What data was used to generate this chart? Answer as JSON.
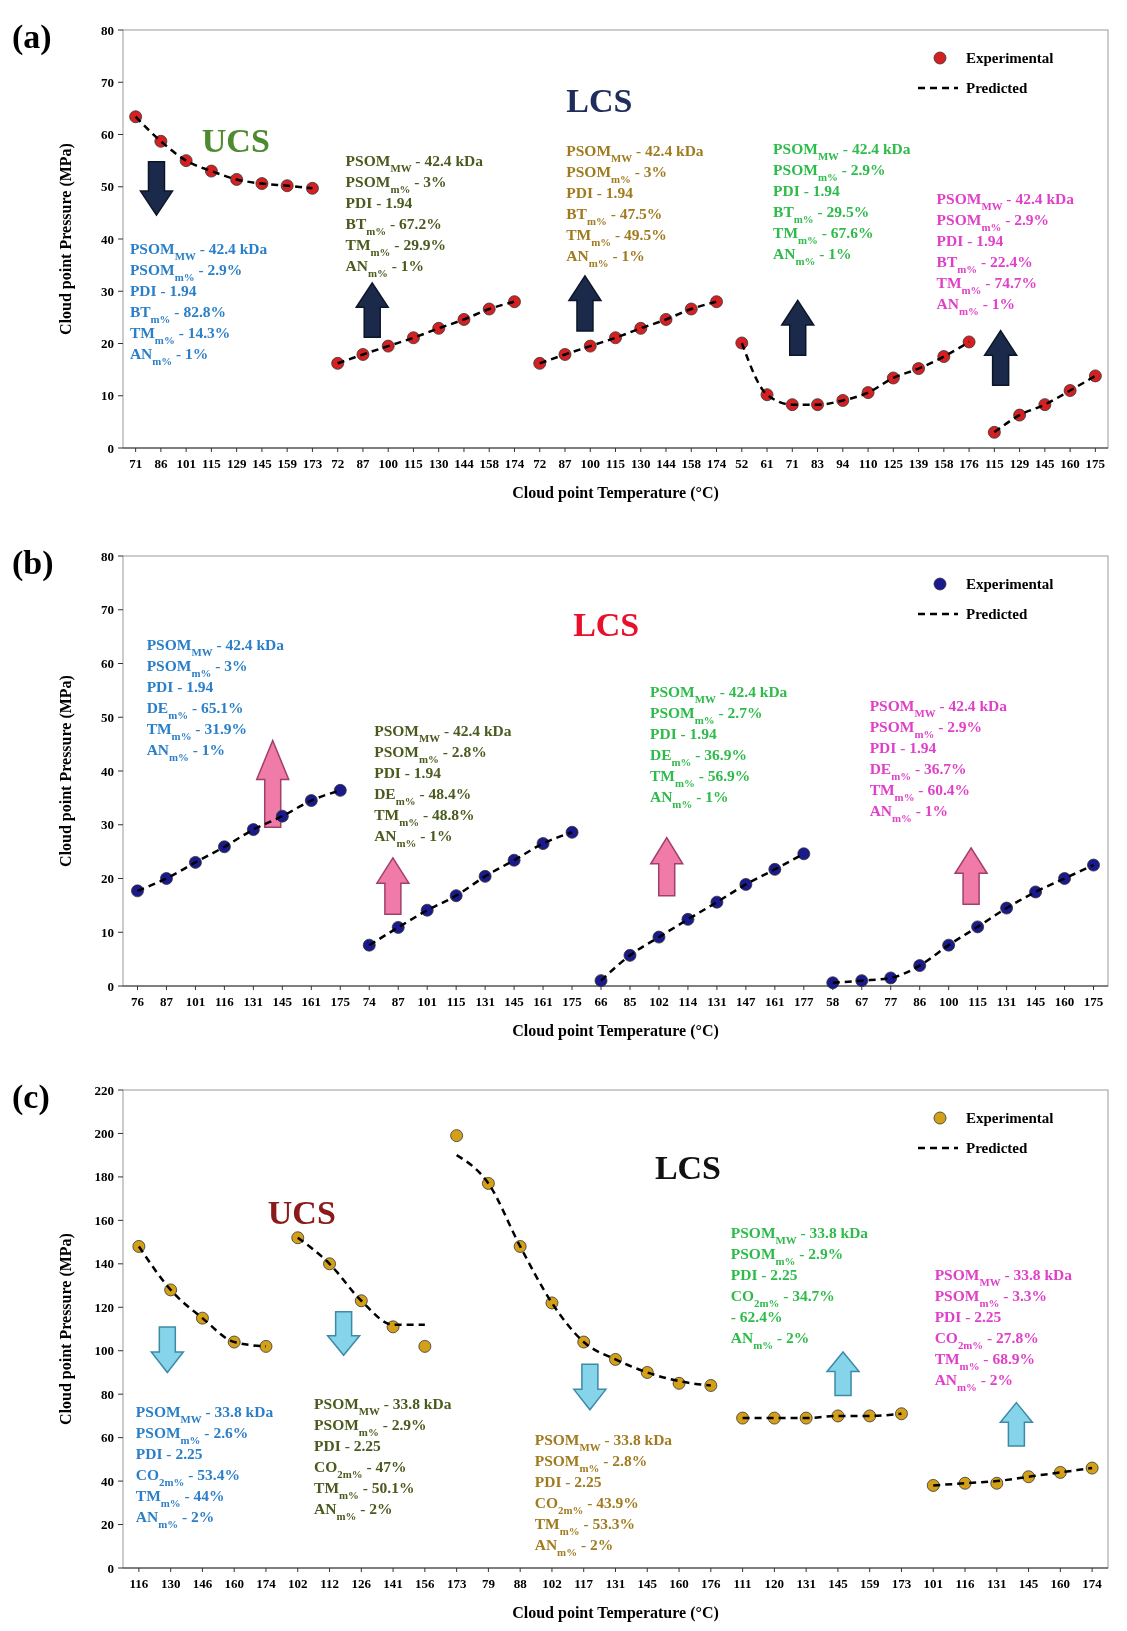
{
  "chart_data": [
    {
      "type": "scatter",
      "title": "(a)",
      "xlabel": "Cloud point Temperature (°C)",
      "ylabel": "Cloud point Pressure (MPa)",
      "ylim": [
        0,
        80
      ],
      "yticks": [
        0,
        10,
        20,
        30,
        40,
        50,
        60,
        70,
        80
      ],
      "legend": "top right",
      "line_style": "dashed",
      "categories": [
        "71",
        "86",
        "101",
        "115",
        "129",
        "145",
        "159",
        "173",
        "72",
        "87",
        "100",
        "115",
        "130",
        "144",
        "158",
        "174",
        "72",
        "87",
        "100",
        "115",
        "130",
        "144",
        "158",
        "174",
        "52",
        "61",
        "71",
        "83",
        "94",
        "110",
        "125",
        "139",
        "158",
        "176",
        "115",
        "129",
        "145",
        "160",
        "175"
      ],
      "annotations": [
        "UCS",
        "LCS",
        "PSOM$_{MW}$ - 42.4 kDa\nPSOM$_{m%}$ - 2.9%\nPDI - 1.94\nBT$_{m%}$ - 82.8%\nTM$_{m%}$ - 14.3%\nAN$_{m%}$ - 1%",
        "PSOM$_{MW}$ - 42.4 kDa\nPSOM$_{m%}$ - 3%\nPDI - 1.94\nBT$_{m%}$ - 67.2%\nTM$_{m%}$ - 29.9%\nAN$_{m%}$ - 1%",
        "PSOM$_{MW}$ - 42.4 kDa\nPSOM$_{m%}$ - 3%\nPDI - 1.94\nBT$_{m%}$ - 47.5%\nTM$_{m%}$ - 49.5%\nAN$_{m%}$ - 1%",
        "PSOM$_{MW}$ - 42.4 kDa\nPSOM$_{m%}$ - 2.9%\nPDI - 1.94\nBT$_{m%}$ - 29.5%\nTM$_{m%}$ - 67.6%\nAN$_{m%}$ - 1%",
        "PSOM$_{MW}$ - 42.4 kDa\nPSOM$_{m%}$ - 2.9%\nPDI - 1.94\nBT$_{m%}$ - 22.4%\nTM$_{m%}$ - 74.7%\nAN$_{m%}$ - 1%"
      ],
      "series": [
        {
          "name": "Experimental",
          "marker": "circle",
          "color": "#d42020",
          "values": [
            63.4,
            58.7,
            55.0,
            53.0,
            51.4,
            50.6,
            50.2,
            49.7,
            16.2,
            17.9,
            19.5,
            21.1,
            22.9,
            24.6,
            26.6,
            28.0,
            16.2,
            17.9,
            19.5,
            21.1,
            22.9,
            24.6,
            26.6,
            28.0,
            20.1,
            10.2,
            8.3,
            8.3,
            9.1,
            10.6,
            13.4,
            15.2,
            17.5,
            20.3,
            3.0,
            6.3,
            8.3,
            11.0,
            13.8
          ]
        },
        {
          "name": "Predicted",
          "type": "line",
          "color": "#000000",
          "values": [
            63.4,
            58.7,
            55.0,
            53.0,
            51.4,
            50.6,
            50.2,
            49.7,
            null,
            null,
            null,
            null,
            null,
            null,
            null,
            null,
            null,
            null,
            null,
            null,
            null,
            null,
            null,
            null,
            null,
            null,
            null,
            null,
            null,
            null,
            null,
            null,
            null,
            null,
            null,
            null,
            null,
            null,
            null
          ]
        },
        {
          "type": "line",
          "color": "#000000",
          "values": [
            null,
            null,
            null,
            null,
            null,
            null,
            null,
            null,
            16.2,
            17.9,
            19.5,
            21.1,
            22.9,
            24.6,
            26.6,
            28.0,
            null,
            null,
            null,
            null,
            null,
            null,
            null,
            null,
            null,
            null,
            null,
            null,
            null,
            null,
            null,
            null,
            null,
            null,
            null,
            null,
            null,
            null,
            null
          ]
        },
        {
          "type": "line",
          "color": "#000000",
          "values": [
            null,
            null,
            null,
            null,
            null,
            null,
            null,
            null,
            null,
            null,
            null,
            null,
            null,
            null,
            null,
            null,
            16.2,
            17.9,
            19.5,
            21.1,
            22.9,
            24.6,
            26.6,
            28.0,
            null,
            null,
            null,
            null,
            null,
            null,
            null,
            null,
            null,
            null,
            null,
            null,
            null,
            null,
            null
          ]
        },
        {
          "type": "line",
          "color": "#000000",
          "values": [
            null,
            null,
            null,
            null,
            null,
            null,
            null,
            null,
            null,
            null,
            null,
            null,
            null,
            null,
            null,
            null,
            null,
            null,
            null,
            null,
            null,
            null,
            null,
            null,
            20.1,
            10.2,
            8.3,
            8.3,
            9.1,
            10.6,
            13.4,
            15.2,
            17.5,
            20.3,
            null,
            null,
            null,
            null,
            null
          ]
        },
        {
          "type": "line",
          "color": "#000000",
          "values": [
            null,
            null,
            null,
            null,
            null,
            null,
            null,
            null,
            null,
            null,
            null,
            null,
            null,
            null,
            null,
            null,
            null,
            null,
            null,
            null,
            null,
            null,
            null,
            null,
            null,
            null,
            null,
            null,
            null,
            null,
            null,
            null,
            null,
            null,
            3.0,
            6.3,
            8.3,
            11.0,
            13.8
          ]
        }
      ]
    },
    {
      "type": "scatter",
      "title": "(b)",
      "xlabel": "Cloud point Temperature (°C)",
      "ylabel": "Cloud point Pressure (MPa)",
      "ylim": [
        0,
        80
      ],
      "yticks": [
        0,
        10,
        20,
        30,
        40,
        50,
        60,
        70,
        80
      ],
      "legend": "top right",
      "line_style": "dashed",
      "categories": [
        "76",
        "87",
        "101",
        "116",
        "131",
        "145",
        "161",
        "175",
        "74",
        "87",
        "101",
        "115",
        "131",
        "145",
        "161",
        "175",
        "66",
        "85",
        "102",
        "114",
        "131",
        "147",
        "161",
        "177",
        "58",
        "67",
        "77",
        "86",
        "100",
        "115",
        "131",
        "145",
        "160",
        "175"
      ],
      "annotations": [
        "LCS",
        "PSOM$_{MW}$ - 42.4 kDa\nPSOM$_{m%}$ - 3%\nPDI - 1.94\nDE$_{m%}$ - 65.1%\nTM$_{m%}$ - 31.9%\nAN$_{m%}$ - 1%",
        "PSOM$_{MW}$ - 42.4 kDa\nPSOM$_{m%}$ - 2.8%\nPDI - 1.94\nDE$_{m%}$ - 48.4%\nTM$_{m%}$ - 48.8%\nAN$_{m%}$ - 1%",
        "PSOM$_{MW}$ - 42.4 kDa\nPSOM$_{m%}$ - 2.7%\nPDI - 1.94\nDE$_{m%}$ - 36.9%\nTM$_{m%}$ - 56.9%\nAN$_{m%}$ - 1%",
        "PSOM$_{MW}$ - 42.4 kDa\nPSOM$_{m%}$ - 2.9%\nPDI - 1.94\nDE$_{m%}$ - 36.7%\nTM$_{m%}$ - 60.4%\nAN$_{m%}$ - 1%"
      ],
      "series": [
        {
          "name": "Experimental",
          "marker": "circle",
          "color": "#1a1a8c",
          "values": [
            17.7,
            20.0,
            23.0,
            25.9,
            29.1,
            31.6,
            34.5,
            36.4,
            7.6,
            10.9,
            14.1,
            16.8,
            20.4,
            23.4,
            26.5,
            28.6,
            1.0,
            5.7,
            9.1,
            12.4,
            15.6,
            18.9,
            21.7,
            24.6,
            0.6,
            1.0,
            1.5,
            3.8,
            7.6,
            11.0,
            14.5,
            17.5,
            20.0,
            22.5
          ]
        },
        {
          "name": "Predicted",
          "type": "line",
          "color": "#000000",
          "values": [
            17.7,
            20.0,
            23.0,
            25.9,
            29.1,
            31.6,
            34.5,
            36.4,
            null,
            null,
            null,
            null,
            null,
            null,
            null,
            null,
            null,
            null,
            null,
            null,
            null,
            null,
            null,
            null,
            null,
            null,
            null,
            null,
            null,
            null,
            null,
            null,
            null,
            null
          ]
        },
        {
          "type": "line",
          "color": "#000000",
          "values": [
            null,
            null,
            null,
            null,
            null,
            null,
            null,
            null,
            7.6,
            10.9,
            14.1,
            16.8,
            20.4,
            23.4,
            26.5,
            28.6,
            null,
            null,
            null,
            null,
            null,
            null,
            null,
            null,
            null,
            null,
            null,
            null,
            null,
            null,
            null,
            null,
            null,
            null
          ]
        },
        {
          "type": "line",
          "color": "#000000",
          "values": [
            null,
            null,
            null,
            null,
            null,
            null,
            null,
            null,
            null,
            null,
            null,
            null,
            null,
            null,
            null,
            null,
            1.0,
            5.7,
            9.1,
            12.4,
            15.6,
            18.9,
            21.7,
            24.6,
            null,
            null,
            null,
            null,
            null,
            null,
            null,
            null,
            null,
            null
          ]
        },
        {
          "type": "line",
          "color": "#000000",
          "values": [
            null,
            null,
            null,
            null,
            null,
            null,
            null,
            null,
            null,
            null,
            null,
            null,
            null,
            null,
            null,
            null,
            null,
            null,
            null,
            null,
            null,
            null,
            null,
            null,
            0.6,
            1.0,
            1.5,
            3.8,
            7.6,
            11.0,
            14.5,
            17.5,
            20.0,
            22.5
          ]
        }
      ]
    },
    {
      "type": "scatter",
      "title": "(c)",
      "xlabel": "Cloud point Temperature (°C)",
      "ylabel": "Cloud point Pressure (MPa)",
      "ylim": [
        0,
        220
      ],
      "yticks": [
        0,
        20,
        40,
        60,
        80,
        100,
        120,
        140,
        160,
        180,
        200,
        220
      ],
      "legend": "top right",
      "line_style": "dashed",
      "categories": [
        "116",
        "130",
        "146",
        "160",
        "174",
        "102",
        "112",
        "126",
        "141",
        "156",
        "173",
        "79",
        "88",
        "102",
        "117",
        "131",
        "145",
        "160",
        "176",
        "111",
        "120",
        "131",
        "145",
        "159",
        "173",
        "101",
        "116",
        "131",
        "145",
        "160",
        "174"
      ],
      "annotations": [
        "LCS",
        "UCS",
        "PSOM$_{MW}$ - 33.8 kDa\nPSOM$_{m%}$ - 2.6%\nPDI - 2.25\nCO$_{2m%}$ - 53.4%\nTM$_{m%}$ - 44%\nAN$_{m%}$ - 2%",
        "PSOM$_{MW}$ - 33.8 kDa\nPSOM$_{m%}$ - 2.9%\nPDI - 2.25\nCO$_{2m%}$ - 47%\nTM$_{m%}$ - 50.1%\nAN$_{m%}$ - 2%",
        "PSOM$_{MW}$ - 33.8 kDa\nPSOM$_{m%}$ - 2.8%\nPDI - 2.25\nCO$_{2m%}$ - 43.9%\nTM$_{m%}$ - 53.3%\nAN$_{m%}$ - 2%",
        "PSOM$_{MW}$ - 33.8 kDa\nPSOM$_{m%}$ - 2.9%\nPDI - 2.25\nCO$_{2m%}$ - 34.7%\n- 62.4%\nAN$_{m%}$ - 2%",
        "PSOM$_{MW}$ - 33.8 kDa\nPSOM$_{m%}$ - 3.3%\nPDI - 2.25\nCO$_{2m%}$ - 27.8%\nTM$_{m%}$ - 68.9%\nAN$_{m%}$ - 2%"
      ],
      "series": [
        {
          "name": "Experimental",
          "marker": "circle",
          "color": "#d4a017",
          "values": [
            148,
            128,
            115,
            104,
            102,
            152,
            140,
            123,
            111,
            102,
            199,
            177,
            148,
            122,
            104,
            96,
            90,
            85,
            84,
            69,
            69,
            69,
            70,
            70,
            71,
            38,
            39,
            39,
            42,
            44,
            46
          ]
        },
        {
          "name": "Predicted",
          "type": "line",
          "color": "#000000",
          "values": [
            148,
            128,
            115,
            104,
            102,
            null,
            null,
            null,
            null,
            null,
            null,
            null,
            null,
            null,
            null,
            null,
            null,
            null,
            null,
            null,
            null,
            null,
            null,
            null,
            null,
            null,
            null,
            null,
            null,
            null,
            null
          ]
        },
        {
          "type": "line",
          "color": "#000000",
          "values": [
            null,
            null,
            null,
            null,
            null,
            152,
            140,
            123,
            112,
            112,
            null,
            null,
            null,
            null,
            null,
            null,
            null,
            null,
            null,
            null,
            null,
            null,
            null,
            null,
            null,
            null,
            null,
            null,
            null,
            null,
            null
          ]
        },
        {
          "type": "line",
          "color": "#000000",
          "values": [
            null,
            null,
            null,
            null,
            null,
            null,
            null,
            null,
            null,
            null,
            190,
            177,
            148,
            122,
            104,
            96,
            90,
            86,
            84,
            null,
            null,
            null,
            null,
            null,
            null,
            null,
            null,
            null,
            null,
            null,
            null
          ]
        },
        {
          "type": "line",
          "color": "#000000",
          "values": [
            null,
            null,
            null,
            null,
            null,
            null,
            null,
            null,
            null,
            null,
            null,
            null,
            null,
            null,
            null,
            null,
            null,
            null,
            null,
            69,
            69,
            69,
            70,
            70,
            71,
            null,
            null,
            null,
            null,
            null,
            null
          ]
        },
        {
          "type": "line",
          "color": "#000000",
          "values": [
            null,
            null,
            null,
            null,
            null,
            null,
            null,
            null,
            null,
            null,
            null,
            null,
            null,
            null,
            null,
            null,
            null,
            null,
            null,
            null,
            null,
            null,
            null,
            null,
            null,
            38,
            39,
            40,
            42,
            44,
            46
          ]
        }
      ]
    }
  ]
}
